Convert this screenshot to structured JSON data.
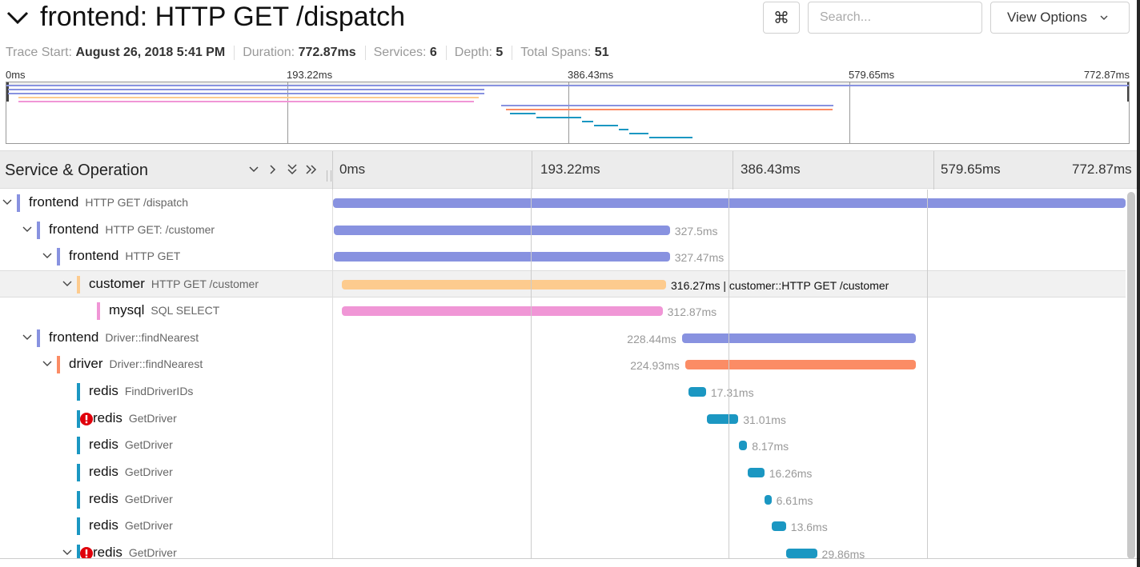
{
  "header": {
    "title": "frontend: HTTP GET /dispatch",
    "cmd_glyph": "⌘",
    "search_placeholder": "Search...",
    "view_options_label": "View Options"
  },
  "meta": [
    {
      "label": "Trace Start:",
      "value": "August 26, 2018 5:41 PM"
    },
    {
      "label": "Duration:",
      "value": "772.87ms"
    },
    {
      "label": "Services:",
      "value": "6"
    },
    {
      "label": "Depth:",
      "value": "5"
    },
    {
      "label": "Total Spans:",
      "value": "51"
    }
  ],
  "ticks": [
    "0ms",
    "193.22ms",
    "386.43ms",
    "579.65ms",
    "772.87ms"
  ],
  "timeline": {
    "column_title": "Service & Operation",
    "trace_duration_ms": 772.87
  },
  "colors": {
    "frontend": "#8892e0",
    "customer": "#fdcb8e",
    "mysql": "#f096d6",
    "driver": "#fb8c65",
    "redis": "#1b97c2",
    "error": "#e0000b"
  },
  "spans": [
    {
      "service": "frontend",
      "operation": "HTTP GET /dispatch",
      "depth": 0,
      "toggle": true,
      "start_ms": 0,
      "duration_ms": 772.87,
      "duration_label": "",
      "error": false
    },
    {
      "service": "frontend",
      "operation": "HTTP GET: /customer",
      "depth": 1,
      "toggle": true,
      "start_ms": 1,
      "duration_ms": 327.5,
      "duration_label": "327.5ms",
      "error": false
    },
    {
      "service": "frontend",
      "operation": "HTTP GET",
      "depth": 2,
      "toggle": true,
      "start_ms": 1,
      "duration_ms": 327.47,
      "duration_label": "327.47ms",
      "error": false
    },
    {
      "service": "customer",
      "operation": "HTTP GET /customer",
      "depth": 3,
      "toggle": true,
      "start_ms": 8.5,
      "duration_ms": 316.27,
      "duration_label": "316.27ms",
      "error": false,
      "selected": true,
      "hover_label": "customer::HTTP GET /customer"
    },
    {
      "service": "mysql",
      "operation": "SQL SELECT",
      "depth": 4,
      "toggle": false,
      "start_ms": 8.5,
      "duration_ms": 312.87,
      "duration_label": "312.87ms",
      "error": false
    },
    {
      "service": "frontend",
      "operation": "Driver::findNearest",
      "depth": 1,
      "toggle": true,
      "start_ms": 340.2,
      "duration_ms": 228.44,
      "duration_label": "228.44ms",
      "error": false
    },
    {
      "service": "driver",
      "operation": "Driver::findNearest",
      "depth": 2,
      "toggle": true,
      "start_ms": 343.3,
      "duration_ms": 224.93,
      "duration_label": "224.93ms",
      "error": false
    },
    {
      "service": "redis",
      "operation": "FindDriverIDs",
      "depth": 3,
      "toggle": false,
      "start_ms": 346.4,
      "duration_ms": 17.31,
      "duration_label": "17.31ms",
      "error": false
    },
    {
      "service": "redis",
      "operation": "GetDriver",
      "depth": 3,
      "toggle": false,
      "start_ms": 364.2,
      "duration_ms": 31.01,
      "duration_label": "31.01ms",
      "error": true
    },
    {
      "service": "redis",
      "operation": "GetDriver",
      "depth": 3,
      "toggle": false,
      "start_ms": 395.6,
      "duration_ms": 8.17,
      "duration_label": "8.17ms",
      "error": false
    },
    {
      "service": "redis",
      "operation": "GetDriver",
      "depth": 3,
      "toggle": false,
      "start_ms": 404.3,
      "duration_ms": 16.26,
      "duration_label": "16.26ms",
      "error": false
    },
    {
      "service": "redis",
      "operation": "GetDriver",
      "depth": 3,
      "toggle": false,
      "start_ms": 420.9,
      "duration_ms": 6.61,
      "duration_label": "6.61ms",
      "error": false
    },
    {
      "service": "redis",
      "operation": "GetDriver",
      "depth": 3,
      "toggle": false,
      "start_ms": 428.1,
      "duration_ms": 13.6,
      "duration_label": "13.6ms",
      "error": false
    },
    {
      "service": "redis",
      "operation": "GetDriver",
      "depth": 3,
      "toggle": true,
      "start_ms": 442.1,
      "duration_ms": 29.86,
      "duration_label": "29.86ms",
      "error": true
    }
  ]
}
